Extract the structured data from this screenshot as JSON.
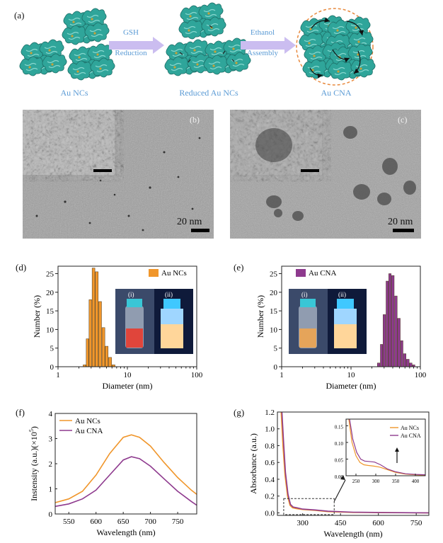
{
  "panel_a": {
    "label": "(a)",
    "step1": {
      "line1": "GSH",
      "line2": "Reduction"
    },
    "step2": {
      "line1": "Ethanol",
      "line2": "Assembly"
    },
    "captions": [
      "Au NCs",
      "Reduced  Au NCs",
      "Au CNA"
    ]
  },
  "panel_b": {
    "label": "(b)",
    "scale": "20 nm"
  },
  "panel_c": {
    "label": "(c)",
    "scale": "20 nm"
  },
  "inset_labels": {
    "i": "(i)",
    "ii": "(ii)"
  },
  "colors": {
    "au_ncs": "#f0962b",
    "au_cna": "#8e3a8e",
    "dashed_box": "#333333"
  },
  "chart_data": [
    {
      "id": "d",
      "label": "(d)",
      "type": "bar",
      "legend": "Au NCs",
      "xlabel": "Diameter (nm)",
      "ylabel": "Number (%)",
      "x_scale": "log",
      "xlim": [
        1,
        100
      ],
      "ylim": [
        0,
        27
      ],
      "xticks": [
        "1",
        "10",
        "100"
      ],
      "yticks": [
        "0",
        "5",
        "10",
        "15",
        "20",
        "25"
      ],
      "bins_nm": [
        2.3,
        2.55,
        2.8,
        3.1,
        3.45,
        3.85,
        4.3,
        4.8,
        5.35,
        6.0
      ],
      "values": [
        0.5,
        7.5,
        18,
        26.5,
        25.5,
        17.5,
        10.5,
        5.5,
        2.5,
        0.5
      ]
    },
    {
      "id": "e",
      "label": "(e)",
      "type": "bar",
      "legend": "Au CNA",
      "xlabel": "Diameter (nm)",
      "ylabel": "Number (%)",
      "x_scale": "log",
      "xlim": [
        1,
        100
      ],
      "ylim": [
        0,
        27
      ],
      "xticks": [
        "1",
        "10",
        "100"
      ],
      "yticks": [
        "0",
        "5",
        "10",
        "15",
        "20",
        "25"
      ],
      "bins_nm": [
        24,
        26.5,
        29,
        32,
        35,
        38.5,
        42.5,
        47,
        52,
        57,
        63,
        70,
        77
      ],
      "values": [
        1,
        6,
        14,
        23,
        25,
        24.5,
        19,
        13,
        7,
        3.5,
        2,
        1,
        0.5
      ]
    },
    {
      "id": "f",
      "label": "(f)",
      "type": "line",
      "xlabel": "Wavelength (nm)",
      "ylabel": "Instensity (a.u.)(×10",
      "ylabel_sup": "5",
      "ylabel_end": ")",
      "xlim": [
        525,
        785
      ],
      "ylim": [
        0,
        4
      ],
      "xticks": [
        "550",
        "600",
        "650",
        "700",
        "750"
      ],
      "yticks": [
        "0",
        "1",
        "2",
        "3",
        "4"
      ],
      "series": [
        {
          "name": "Au NCs",
          "x": [
            525,
            550,
            575,
            600,
            625,
            650,
            665,
            680,
            700,
            725,
            750,
            775,
            785
          ],
          "y": [
            0.45,
            0.6,
            0.9,
            1.55,
            2.4,
            3.05,
            3.15,
            3.05,
            2.7,
            2.05,
            1.45,
            0.95,
            0.78
          ]
        },
        {
          "name": "Au CNA",
          "x": [
            525,
            550,
            575,
            600,
            625,
            650,
            665,
            680,
            700,
            725,
            750,
            775,
            785
          ],
          "y": [
            0.3,
            0.4,
            0.6,
            0.95,
            1.55,
            2.15,
            2.28,
            2.2,
            1.9,
            1.4,
            0.9,
            0.5,
            0.35
          ]
        }
      ]
    },
    {
      "id": "g",
      "label": "(g)",
      "type": "line",
      "xlabel": "Wavelength (nm)",
      "ylabel": "Absorbance (a.u.)",
      "xlim": [
        200,
        800
      ],
      "ylim": [
        -0.03,
        1.2
      ],
      "xticks": [
        "300",
        "450",
        "600",
        "750"
      ],
      "yticks": [
        "0.0",
        "0.2",
        "0.4",
        "0.6",
        "0.8",
        "1.0",
        "1.2"
      ],
      "series": [
        {
          "name": "Au NCs",
          "x": [
            215,
            222,
            230,
            240,
            250,
            260,
            275,
            300,
            350,
            400,
            500,
            650,
            800
          ],
          "y": [
            1.2,
            0.8,
            0.45,
            0.2,
            0.09,
            0.06,
            0.05,
            0.04,
            0.03,
            0.015,
            0.005,
            0.002,
            0.0
          ]
        },
        {
          "name": "Au CNA",
          "x": [
            218,
            225,
            232,
            242,
            252,
            262,
            278,
            300,
            350,
            400,
            500,
            650,
            800
          ],
          "y": [
            1.2,
            0.82,
            0.48,
            0.22,
            0.1,
            0.07,
            0.06,
            0.045,
            0.035,
            0.02,
            0.008,
            0.003,
            0.0
          ]
        }
      ],
      "inset": {
        "xlim": [
          225,
          425
        ],
        "ylim": [
          0,
          0.17
        ],
        "xticks": [
          "250",
          "300",
          "350",
          "400"
        ],
        "yticks": [
          "0.00",
          "0.05",
          "0.10",
          "0.15"
        ],
        "series": [
          {
            "name": "Au NCs",
            "x": [
              232,
              240,
              250,
              260,
              270,
              280,
              295,
              310,
              330,
              350,
              375,
              400,
              425
            ],
            "y": [
              0.17,
              0.1,
              0.06,
              0.04,
              0.033,
              0.031,
              0.029,
              0.026,
              0.018,
              0.01,
              0.005,
              0.003,
              0.002
            ]
          },
          {
            "name": "Au CNA",
            "x": [
              234,
              242,
              252,
              262,
              272,
              282,
              297,
              312,
              330,
              350,
              375,
              400,
              425
            ],
            "y": [
              0.17,
              0.11,
              0.07,
              0.05,
              0.044,
              0.043,
              0.041,
              0.033,
              0.02,
              0.012,
              0.006,
              0.004,
              0.003
            ]
          }
        ]
      }
    }
  ]
}
